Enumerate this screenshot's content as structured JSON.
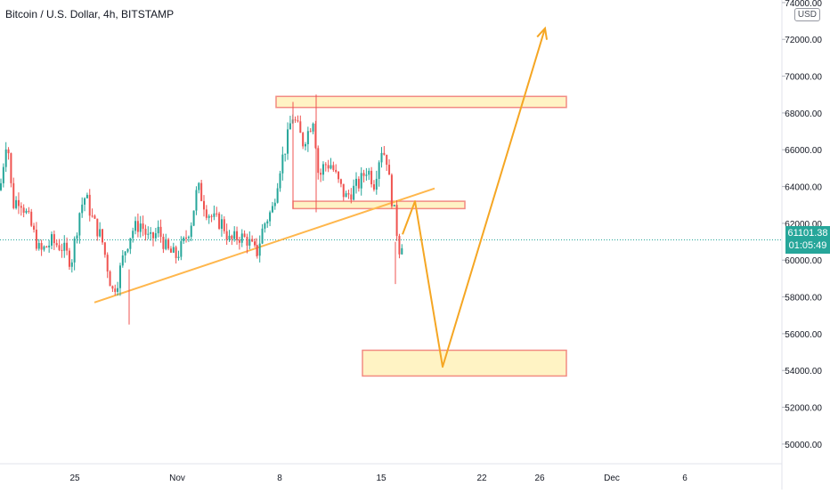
{
  "title": "Bitcoin / U.S. Dollar, 4h, BITSTAMP",
  "price_axis": {
    "currency": "USD",
    "current_price": "61101.38",
    "countdown": "01:05:49",
    "current_color": "#26a69a"
  },
  "colors": {
    "up": "#26a69a",
    "down": "#ef5350",
    "trend": "#ffb74d",
    "arrow": "#f5a623",
    "zone_fill": "#fff3c4",
    "zone_border": "#f28b82"
  },
  "chart_data": {
    "type": "candlestick",
    "title": "Bitcoin / U.S. Dollar, 4h, BITSTAMP",
    "x_tick_labels": [
      "25",
      "Nov",
      "8",
      "15",
      "22",
      "26",
      "Dec",
      "6"
    ],
    "y_tick_labels": [
      "50000.00",
      "52000.00",
      "54000.00",
      "56000.00",
      "58000.00",
      "60000.00",
      "62000.00",
      "64000.00",
      "66000.00",
      "68000.00",
      "70000.00",
      "72000.00",
      "74000.00"
    ],
    "ylim": [
      49000,
      74500
    ],
    "current_price": 61101.38,
    "series_path": [
      [
        0,
        63800
      ],
      [
        8,
        66900
      ],
      [
        14,
        63000
      ],
      [
        22,
        63400
      ],
      [
        34,
        62000
      ],
      [
        45,
        60400
      ],
      [
        58,
        61000
      ],
      [
        70,
        60700
      ],
      [
        80,
        59900
      ],
      [
        90,
        62800
      ],
      [
        96,
        63500
      ],
      [
        104,
        62200
      ],
      [
        114,
        61200
      ],
      [
        120,
        59800
      ],
      [
        126,
        58300
      ],
      [
        132,
        58900
      ],
      [
        140,
        60500
      ],
      [
        148,
        61600
      ],
      [
        158,
        62000
      ],
      [
        168,
        61000
      ],
      [
        178,
        61600
      ],
      [
        188,
        60500
      ],
      [
        198,
        60200
      ],
      [
        206,
        60900
      ],
      [
        214,
        61900
      ],
      [
        222,
        64000
      ],
      [
        232,
        62700
      ],
      [
        240,
        62200
      ],
      [
        250,
        62000
      ],
      [
        258,
        61000
      ],
      [
        268,
        61300
      ],
      [
        278,
        61100
      ],
      [
        288,
        60300
      ],
      [
        296,
        61900
      ],
      [
        306,
        62800
      ],
      [
        314,
        65000
      ],
      [
        322,
        66400
      ],
      [
        328,
        67900
      ],
      [
        334,
        67200
      ],
      [
        340,
        66400
      ],
      [
        346,
        67000
      ],
      [
        352,
        67800
      ],
      [
        358,
        64400
      ],
      [
        364,
        65200
      ],
      [
        372,
        65200
      ],
      [
        380,
        64200
      ],
      [
        388,
        63400
      ],
      [
        396,
        63800
      ],
      [
        404,
        64200
      ],
      [
        412,
        65000
      ],
      [
        420,
        64200
      ],
      [
        428,
        66100
      ],
      [
        434,
        65600
      ],
      [
        438,
        63900
      ],
      [
        444,
        62200
      ],
      [
        448,
        60600
      ],
      [
        452,
        61100
      ]
    ],
    "annotations": {
      "zones": [
        {
          "x": [
            310,
            636
          ],
          "y_price": [
            68300,
            68900
          ]
        },
        {
          "x": [
            329,
            522
          ],
          "y_price": [
            62800,
            63200
          ]
        },
        {
          "x": [
            407,
            636
          ],
          "y_price": [
            53700,
            55100
          ]
        }
      ],
      "trendline": [
        [
          106,
          57700
        ],
        [
          488,
          63900
        ]
      ],
      "projection": [
        [
          452,
          61400
        ],
        [
          466,
          63200
        ],
        [
          497,
          54200
        ],
        [
          612,
          72600
        ]
      ]
    }
  }
}
